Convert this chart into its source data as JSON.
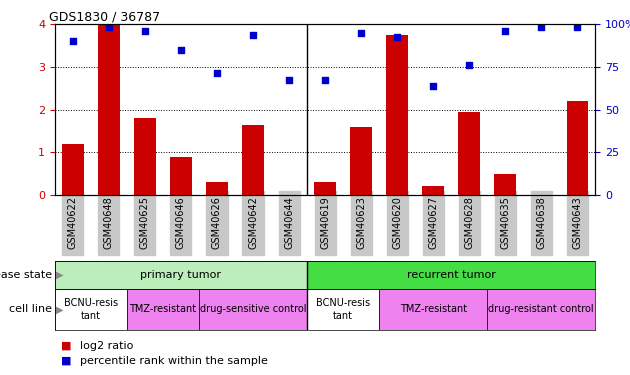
{
  "title": "GDS1830 / 36787",
  "samples": [
    "GSM40622",
    "GSM40648",
    "GSM40625",
    "GSM40646",
    "GSM40626",
    "GSM40642",
    "GSM40644",
    "GSM40619",
    "GSM40623",
    "GSM40620",
    "GSM40627",
    "GSM40628",
    "GSM40635",
    "GSM40638",
    "GSM40643"
  ],
  "log2_ratio": [
    1.2,
    4.0,
    1.8,
    0.9,
    0.3,
    1.65,
    0.0,
    0.3,
    1.6,
    3.75,
    0.2,
    1.95,
    0.5,
    0.0,
    2.2
  ],
  "percentile": [
    3.6,
    3.95,
    3.85,
    3.4,
    2.85,
    3.75,
    2.7,
    2.7,
    3.8,
    3.7,
    2.55,
    3.05,
    3.85,
    3.95,
    3.95
  ],
  "bar_color": "#cc0000",
  "dot_color": "#0000cc",
  "ylim_left": [
    0,
    4
  ],
  "ylim_right": [
    0,
    100
  ],
  "yticks_left": [
    0,
    1,
    2,
    3,
    4
  ],
  "yticks_right": [
    0,
    25,
    50,
    75,
    100
  ],
  "ytick_labels_right": [
    "0",
    "25",
    "50",
    "75",
    "100%"
  ],
  "separator_idx": 6.5,
  "disease_state_groups": [
    {
      "label": "primary tumor",
      "start": 0,
      "end": 7,
      "color": "#bceebc"
    },
    {
      "label": "recurrent tumor",
      "start": 7,
      "end": 15,
      "color": "#44dd44"
    }
  ],
  "cell_line_groups": [
    {
      "label": "BCNU-resis\ntant",
      "start": 0,
      "end": 2,
      "color": "#ffffff"
    },
    {
      "label": "TMZ-resistant",
      "start": 2,
      "end": 4,
      "color": "#ee82ee"
    },
    {
      "label": "drug-sensitive control",
      "start": 4,
      "end": 7,
      "color": "#ee82ee"
    },
    {
      "label": "BCNU-resis\ntant",
      "start": 7,
      "end": 9,
      "color": "#ffffff"
    },
    {
      "label": "TMZ-resistant",
      "start": 9,
      "end": 12,
      "color": "#ee82ee"
    },
    {
      "label": "drug-resistant control",
      "start": 12,
      "end": 15,
      "color": "#ee82ee"
    }
  ],
  "cell_line_colors": [
    "#ffffff",
    "#ee82ee",
    "#ee82ee",
    "#ffffff",
    "#ee82ee",
    "#ee82ee"
  ],
  "background_color": "#ffffff",
  "tick_area_color": "#c8c8c8",
  "left_label_disease": "disease state",
  "left_label_cell": "cell line",
  "legend_red_label": "log2 ratio",
  "legend_blue_label": "percentile rank within the sample"
}
